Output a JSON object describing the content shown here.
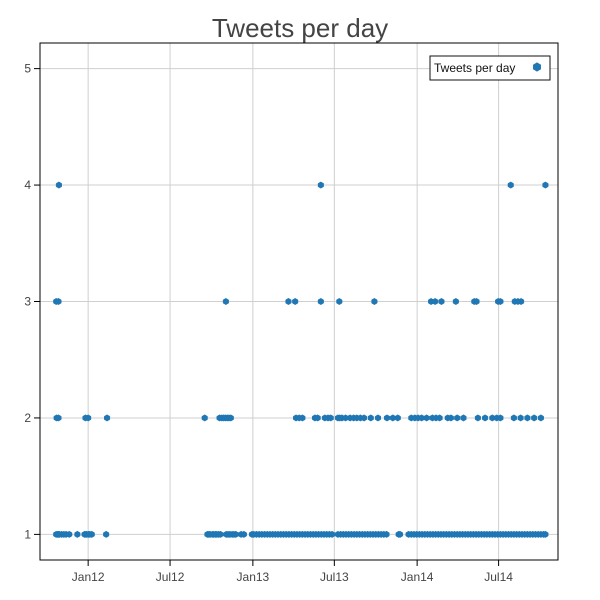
{
  "colors": {
    "series": "#1f77b4",
    "grid": "#cfcfcf",
    "axis": "#000000",
    "text": "#444444"
  },
  "chart_data": {
    "type": "scatter",
    "title": "Tweets per day",
    "xlabel": "",
    "ylabel": "",
    "x_axis": "date",
    "xlim": [
      "2011-09-16",
      "2014-11-10"
    ],
    "ylim": [
      0.78,
      5.22
    ],
    "grid": true,
    "legend_position": "top-right",
    "x_ticks": [
      {
        "date": "2012-01-01",
        "label": "Jan12"
      },
      {
        "date": "2012-07-01",
        "label": "Jul12"
      },
      {
        "date": "2013-01-01",
        "label": "Jan13"
      },
      {
        "date": "2013-07-01",
        "label": "Jul13"
      },
      {
        "date": "2014-01-01",
        "label": "Jan14"
      },
      {
        "date": "2014-07-01",
        "label": "Jul14"
      }
    ],
    "y_ticks": [
      1,
      2,
      3,
      4,
      5
    ],
    "series": [
      {
        "name": "Tweets per day",
        "points": [
          {
            "x": "2011-10-22",
            "y": 1
          },
          {
            "x": "2011-10-25",
            "y": 1
          },
          {
            "x": "2011-10-27",
            "y": 1
          },
          {
            "x": "2011-10-29",
            "y": 1
          },
          {
            "x": "2011-11-03",
            "y": 1
          },
          {
            "x": "2011-11-08",
            "y": 1
          },
          {
            "x": "2011-11-13",
            "y": 1
          },
          {
            "x": "2011-11-20",
            "y": 1
          },
          {
            "x": "2011-12-08",
            "y": 1
          },
          {
            "x": "2011-12-24",
            "y": 1
          },
          {
            "x": "2011-12-27",
            "y": 1
          },
          {
            "x": "2011-12-29",
            "y": 1
          },
          {
            "x": "2012-01-02",
            "y": 1
          },
          {
            "x": "2012-01-05",
            "y": 1
          },
          {
            "x": "2012-01-09",
            "y": 1
          },
          {
            "x": "2012-02-10",
            "y": 1
          },
          {
            "x": "2012-09-22",
            "y": 1
          },
          {
            "x": "2012-09-25",
            "y": 1
          },
          {
            "x": "2012-09-28",
            "y": 1
          },
          {
            "x": "2012-10-03",
            "y": 1
          },
          {
            "x": "2012-10-06",
            "y": 1
          },
          {
            "x": "2012-10-10",
            "y": 1
          },
          {
            "x": "2012-10-13",
            "y": 1
          },
          {
            "x": "2012-10-17",
            "y": 1
          },
          {
            "x": "2012-10-21",
            "y": 1
          },
          {
            "x": "2012-11-03",
            "y": 1
          },
          {
            "x": "2012-11-07",
            "y": 1
          },
          {
            "x": "2012-11-11",
            "y": 1
          },
          {
            "x": "2012-11-16",
            "y": 1
          },
          {
            "x": "2012-11-20",
            "y": 1
          },
          {
            "x": "2012-11-24",
            "y": 1
          },
          {
            "x": "2012-12-06",
            "y": 1
          },
          {
            "x": "2012-12-12",
            "y": 1
          },
          {
            "x": "2012-12-30",
            "y": 1
          },
          {
            "x": "2013-01-03",
            "y": 1
          },
          {
            "x": "2013-01-09",
            "y": 1
          },
          {
            "x": "2013-01-15",
            "y": 1
          },
          {
            "x": "2013-01-21",
            "y": 1
          },
          {
            "x": "2013-01-27",
            "y": 1
          },
          {
            "x": "2013-02-02",
            "y": 1
          },
          {
            "x": "2013-02-08",
            "y": 1
          },
          {
            "x": "2013-02-14",
            "y": 1
          },
          {
            "x": "2013-02-20",
            "y": 1
          },
          {
            "x": "2013-02-26",
            "y": 1
          },
          {
            "x": "2013-03-04",
            "y": 1
          },
          {
            "x": "2013-03-10",
            "y": 1
          },
          {
            "x": "2013-03-16",
            "y": 1
          },
          {
            "x": "2013-03-22",
            "y": 1
          },
          {
            "x": "2013-03-28",
            "y": 1
          },
          {
            "x": "2013-04-03",
            "y": 1
          },
          {
            "x": "2013-04-09",
            "y": 1
          },
          {
            "x": "2013-04-15",
            "y": 1
          },
          {
            "x": "2013-04-21",
            "y": 1
          },
          {
            "x": "2013-04-27",
            "y": 1
          },
          {
            "x": "2013-05-03",
            "y": 1
          },
          {
            "x": "2013-05-09",
            "y": 1
          },
          {
            "x": "2013-05-15",
            "y": 1
          },
          {
            "x": "2013-05-21",
            "y": 1
          },
          {
            "x": "2013-05-27",
            "y": 1
          },
          {
            "x": "2013-06-02",
            "y": 1
          },
          {
            "x": "2013-06-08",
            "y": 1
          },
          {
            "x": "2013-06-14",
            "y": 1
          },
          {
            "x": "2013-06-20",
            "y": 1
          },
          {
            "x": "2013-06-26",
            "y": 1
          },
          {
            "x": "2013-07-09",
            "y": 1
          },
          {
            "x": "2013-07-15",
            "y": 1
          },
          {
            "x": "2013-07-21",
            "y": 1
          },
          {
            "x": "2013-07-27",
            "y": 1
          },
          {
            "x": "2013-08-02",
            "y": 1
          },
          {
            "x": "2013-08-08",
            "y": 1
          },
          {
            "x": "2013-08-14",
            "y": 1
          },
          {
            "x": "2013-08-20",
            "y": 1
          },
          {
            "x": "2013-08-26",
            "y": 1
          },
          {
            "x": "2013-09-01",
            "y": 1
          },
          {
            "x": "2013-09-07",
            "y": 1
          },
          {
            "x": "2013-09-13",
            "y": 1
          },
          {
            "x": "2013-09-19",
            "y": 1
          },
          {
            "x": "2013-09-25",
            "y": 1
          },
          {
            "x": "2013-10-01",
            "y": 1
          },
          {
            "x": "2013-10-07",
            "y": 1
          },
          {
            "x": "2013-10-13",
            "y": 1
          },
          {
            "x": "2013-10-19",
            "y": 1
          },
          {
            "x": "2013-10-25",
            "y": 1
          },
          {
            "x": "2013-11-21",
            "y": 1
          },
          {
            "x": "2013-11-24",
            "y": 1
          },
          {
            "x": "2013-12-13",
            "y": 1
          },
          {
            "x": "2013-12-19",
            "y": 1
          },
          {
            "x": "2013-12-25",
            "y": 1
          },
          {
            "x": "2013-12-31",
            "y": 1
          },
          {
            "x": "2014-01-06",
            "y": 1
          },
          {
            "x": "2014-01-12",
            "y": 1
          },
          {
            "x": "2014-01-18",
            "y": 1
          },
          {
            "x": "2014-01-24",
            "y": 1
          },
          {
            "x": "2014-01-30",
            "y": 1
          },
          {
            "x": "2014-02-05",
            "y": 1
          },
          {
            "x": "2014-02-11",
            "y": 1
          },
          {
            "x": "2014-02-17",
            "y": 1
          },
          {
            "x": "2014-02-23",
            "y": 1
          },
          {
            "x": "2014-03-01",
            "y": 1
          },
          {
            "x": "2014-03-07",
            "y": 1
          },
          {
            "x": "2014-03-13",
            "y": 1
          },
          {
            "x": "2014-03-19",
            "y": 1
          },
          {
            "x": "2014-03-25",
            "y": 1
          },
          {
            "x": "2014-03-31",
            "y": 1
          },
          {
            "x": "2014-04-06",
            "y": 1
          },
          {
            "x": "2014-04-12",
            "y": 1
          },
          {
            "x": "2014-04-18",
            "y": 1
          },
          {
            "x": "2014-04-24",
            "y": 1
          },
          {
            "x": "2014-04-30",
            "y": 1
          },
          {
            "x": "2014-05-06",
            "y": 1
          },
          {
            "x": "2014-05-12",
            "y": 1
          },
          {
            "x": "2014-05-18",
            "y": 1
          },
          {
            "x": "2014-05-24",
            "y": 1
          },
          {
            "x": "2014-05-30",
            "y": 1
          },
          {
            "x": "2014-06-05",
            "y": 1
          },
          {
            "x": "2014-06-11",
            "y": 1
          },
          {
            "x": "2014-06-17",
            "y": 1
          },
          {
            "x": "2014-06-23",
            "y": 1
          },
          {
            "x": "2014-06-29",
            "y": 1
          },
          {
            "x": "2014-07-05",
            "y": 1
          },
          {
            "x": "2014-07-11",
            "y": 1
          },
          {
            "x": "2014-07-17",
            "y": 1
          },
          {
            "x": "2014-07-23",
            "y": 1
          },
          {
            "x": "2014-07-29",
            "y": 1
          },
          {
            "x": "2014-08-04",
            "y": 1
          },
          {
            "x": "2014-08-10",
            "y": 1
          },
          {
            "x": "2014-08-16",
            "y": 1
          },
          {
            "x": "2014-08-22",
            "y": 1
          },
          {
            "x": "2014-08-28",
            "y": 1
          },
          {
            "x": "2014-09-03",
            "y": 1
          },
          {
            "x": "2014-09-09",
            "y": 1
          },
          {
            "x": "2014-09-15",
            "y": 1
          },
          {
            "x": "2014-09-21",
            "y": 1
          },
          {
            "x": "2014-09-27",
            "y": 1
          },
          {
            "x": "2014-10-03",
            "y": 1
          },
          {
            "x": "2014-10-09",
            "y": 1
          },
          {
            "x": "2014-10-13",
            "y": 1
          },
          {
            "x": "2011-10-23",
            "y": 2
          },
          {
            "x": "2011-10-27",
            "y": 2
          },
          {
            "x": "2011-12-26",
            "y": 2
          },
          {
            "x": "2012-01-01",
            "y": 2
          },
          {
            "x": "2012-02-12",
            "y": 2
          },
          {
            "x": "2012-09-16",
            "y": 2
          },
          {
            "x": "2012-10-19",
            "y": 2
          },
          {
            "x": "2012-10-24",
            "y": 2
          },
          {
            "x": "2012-10-28",
            "y": 2
          },
          {
            "x": "2012-11-01",
            "y": 2
          },
          {
            "x": "2012-11-05",
            "y": 2
          },
          {
            "x": "2012-11-09",
            "y": 2
          },
          {
            "x": "2012-11-13",
            "y": 2
          },
          {
            "x": "2013-04-07",
            "y": 2
          },
          {
            "x": "2013-04-14",
            "y": 2
          },
          {
            "x": "2013-04-21",
            "y": 2
          },
          {
            "x": "2013-05-19",
            "y": 2
          },
          {
            "x": "2013-05-25",
            "y": 2
          },
          {
            "x": "2013-06-10",
            "y": 2
          },
          {
            "x": "2013-06-17",
            "y": 2
          },
          {
            "x": "2013-06-23",
            "y": 2
          },
          {
            "x": "2013-07-09",
            "y": 2
          },
          {
            "x": "2013-07-13",
            "y": 2
          },
          {
            "x": "2013-07-18",
            "y": 2
          },
          {
            "x": "2013-07-26",
            "y": 2
          },
          {
            "x": "2013-08-05",
            "y": 2
          },
          {
            "x": "2013-08-13",
            "y": 2
          },
          {
            "x": "2013-08-20",
            "y": 2
          },
          {
            "x": "2013-08-28",
            "y": 2
          },
          {
            "x": "2013-09-05",
            "y": 2
          },
          {
            "x": "2013-09-20",
            "y": 2
          },
          {
            "x": "2013-10-06",
            "y": 2
          },
          {
            "x": "2013-10-26",
            "y": 2
          },
          {
            "x": "2013-11-08",
            "y": 2
          },
          {
            "x": "2013-11-19",
            "y": 2
          },
          {
            "x": "2013-12-19",
            "y": 2
          },
          {
            "x": "2013-12-27",
            "y": 2
          },
          {
            "x": "2014-01-03",
            "y": 2
          },
          {
            "x": "2014-01-11",
            "y": 2
          },
          {
            "x": "2014-01-22",
            "y": 2
          },
          {
            "x": "2014-02-04",
            "y": 2
          },
          {
            "x": "2014-02-12",
            "y": 2
          },
          {
            "x": "2014-02-20",
            "y": 2
          },
          {
            "x": "2014-03-10",
            "y": 2
          },
          {
            "x": "2014-03-17",
            "y": 2
          },
          {
            "x": "2014-03-31",
            "y": 2
          },
          {
            "x": "2014-04-14",
            "y": 2
          },
          {
            "x": "2014-05-16",
            "y": 2
          },
          {
            "x": "2014-06-01",
            "y": 2
          },
          {
            "x": "2014-06-17",
            "y": 2
          },
          {
            "x": "2014-06-27",
            "y": 2
          },
          {
            "x": "2014-07-05",
            "y": 2
          },
          {
            "x": "2014-08-04",
            "y": 2
          },
          {
            "x": "2014-08-19",
            "y": 2
          },
          {
            "x": "2014-09-03",
            "y": 2
          },
          {
            "x": "2014-09-18",
            "y": 2
          },
          {
            "x": "2014-10-03",
            "y": 2
          },
          {
            "x": "2011-10-22",
            "y": 3
          },
          {
            "x": "2011-10-27",
            "y": 3
          },
          {
            "x": "2012-11-02",
            "y": 3
          },
          {
            "x": "2013-03-21",
            "y": 3
          },
          {
            "x": "2013-04-05",
            "y": 3
          },
          {
            "x": "2013-06-01",
            "y": 3
          },
          {
            "x": "2013-07-12",
            "y": 3
          },
          {
            "x": "2013-09-28",
            "y": 3
          },
          {
            "x": "2014-02-01",
            "y": 3
          },
          {
            "x": "2014-02-10",
            "y": 3
          },
          {
            "x": "2014-02-24",
            "y": 3
          },
          {
            "x": "2014-03-28",
            "y": 3
          },
          {
            "x": "2014-05-08",
            "y": 3
          },
          {
            "x": "2014-05-13",
            "y": 3
          },
          {
            "x": "2014-06-30",
            "y": 3
          },
          {
            "x": "2014-07-05",
            "y": 3
          },
          {
            "x": "2014-08-06",
            "y": 3
          },
          {
            "x": "2014-08-13",
            "y": 3
          },
          {
            "x": "2014-08-20",
            "y": 3
          },
          {
            "x": "2011-10-28",
            "y": 4
          },
          {
            "x": "2013-06-01",
            "y": 4
          },
          {
            "x": "2014-07-28",
            "y": 4
          },
          {
            "x": "2014-10-13",
            "y": 4
          }
        ]
      }
    ]
  }
}
